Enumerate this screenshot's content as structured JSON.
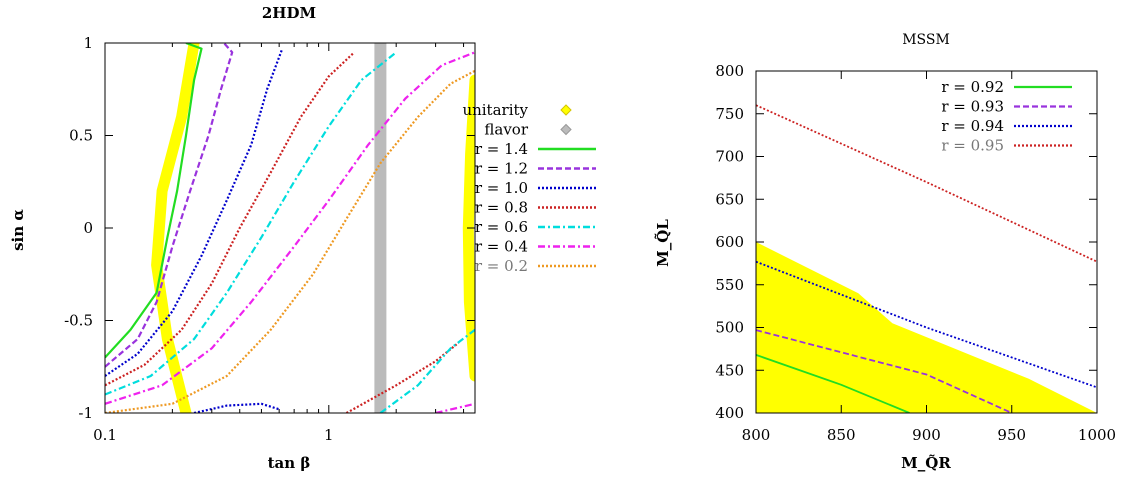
{
  "chart_data": [
    {
      "type": "line",
      "title": "2HDM",
      "xlabel": "tan β",
      "ylabel": "sin α",
      "xscale": "log",
      "xlim": [
        0.1,
        4.5
      ],
      "ylim": [
        -1,
        1
      ],
      "x_ticks": [
        "0.1",
        "1"
      ],
      "y_ticks": [
        "-1",
        "-0.5",
        "0",
        "0.5",
        "1"
      ],
      "legend_position": "right, outside",
      "legend": [
        {
          "label": "unitarity",
          "color": "#ffff00",
          "marker": "diamond"
        },
        {
          "label": "flavor",
          "color": "#bbbbbb",
          "marker": "diamond"
        },
        {
          "label": "r = 1.4",
          "color": "#22dd22",
          "style": "solid"
        },
        {
          "label": "r = 1.2",
          "color": "#9933dd",
          "style": "dashed"
        },
        {
          "label": "r = 1.0",
          "color": "#0000cc",
          "style": "dotted"
        },
        {
          "label": "r = 0.8",
          "color": "#cc2222",
          "style": "dotted"
        },
        {
          "label": "r = 0.6",
          "color": "#00dddd",
          "style": "dash-dot"
        },
        {
          "label": "r = 0.4",
          "color": "#ee22ee",
          "style": "dash-dot"
        },
        {
          "label": "r = 0.2",
          "color": "#ee9922",
          "style": "dotted",
          "text_color": "#777777"
        }
      ],
      "regions": [
        {
          "name": "unitarity",
          "color": "#ffff00",
          "bands": [
            [
              [
                0.25,
                1
              ],
              [
                0.22,
                0.6
              ],
              [
                0.18,
                0.2
              ],
              [
                0.17,
                -0.2
              ],
              [
                0.19,
                -0.6
              ],
              [
                0.23,
                -1
              ]
            ],
            [
              [
                4.5,
                0.8
              ],
              [
                4.3,
                0.4
              ],
              [
                4.2,
                0
              ],
              [
                4.25,
                -0.4
              ],
              [
                4.5,
                -0.8
              ]
            ]
          ]
        },
        {
          "name": "flavor",
          "color": "#bbbbbb",
          "x": 1.7
        }
      ],
      "series": [
        {
          "name": "r = 1.4",
          "color": "#22dd22",
          "curves": [
            [
              [
                0.1,
                -0.7
              ],
              [
                0.13,
                -0.55
              ],
              [
                0.17,
                -0.35
              ],
              [
                0.19,
                -0.05
              ],
              [
                0.21,
                0.2
              ],
              [
                0.23,
                0.5
              ],
              [
                0.25,
                0.8
              ],
              [
                0.27,
                0.97
              ],
              [
                0.23,
                1
              ]
            ]
          ]
        },
        {
          "name": "r = 1.2",
          "color": "#9933dd",
          "curves": [
            [
              [
                0.1,
                -0.75
              ],
              [
                0.14,
                -0.6
              ],
              [
                0.17,
                -0.4
              ],
              [
                0.2,
                -0.1
              ],
              [
                0.24,
                0.2
              ],
              [
                0.29,
                0.5
              ],
              [
                0.33,
                0.75
              ],
              [
                0.37,
                0.95
              ],
              [
                0.34,
                1
              ]
            ]
          ]
        },
        {
          "name": "r = 1.0",
          "color": "#0000cc",
          "curves": [
            [
              [
                0.1,
                -0.8
              ],
              [
                0.14,
                -0.68
              ],
              [
                0.2,
                -0.45
              ],
              [
                0.27,
                -0.15
              ],
              [
                0.35,
                0.15
              ],
              [
                0.45,
                0.45
              ],
              [
                0.53,
                0.75
              ],
              [
                0.62,
                0.97
              ]
            ],
            [
              [
                0.25,
                -1
              ],
              [
                0.35,
                -0.96
              ],
              [
                0.5,
                -0.95
              ],
              [
                0.6,
                -0.98
              ]
            ]
          ]
        },
        {
          "name": "r = 0.8",
          "color": "#cc2222",
          "curves": [
            [
              [
                0.1,
                -0.85
              ],
              [
                0.15,
                -0.74
              ],
              [
                0.22,
                -0.55
              ],
              [
                0.3,
                -0.3
              ],
              [
                0.4,
                0
              ],
              [
                0.55,
                0.3
              ],
              [
                0.75,
                0.6
              ],
              [
                1.0,
                0.82
              ],
              [
                1.3,
                0.95
              ]
            ],
            [
              [
                1.2,
                -1
              ],
              [
                2.0,
                -0.85
              ],
              [
                3.0,
                -0.72
              ],
              [
                3.8,
                -0.62
              ]
            ]
          ]
        },
        {
          "name": "r = 0.6",
          "color": "#00dddd",
          "curves": [
            [
              [
                0.1,
                -0.9
              ],
              [
                0.16,
                -0.8
              ],
              [
                0.25,
                -0.6
              ],
              [
                0.35,
                -0.35
              ],
              [
                0.5,
                -0.05
              ],
              [
                0.7,
                0.25
              ],
              [
                1.0,
                0.55
              ],
              [
                1.4,
                0.8
              ],
              [
                2.0,
                0.95
              ]
            ],
            [
              [
                1.7,
                -1
              ],
              [
                2.5,
                -0.85
              ],
              [
                3.5,
                -0.65
              ],
              [
                4.5,
                -0.55
              ]
            ]
          ]
        },
        {
          "name": "r = 0.4",
          "color": "#ee22ee",
          "curves": [
            [
              [
                0.1,
                -0.95
              ],
              [
                0.18,
                -0.85
              ],
              [
                0.3,
                -0.65
              ],
              [
                0.45,
                -0.4
              ],
              [
                0.7,
                -0.1
              ],
              [
                1.0,
                0.15
              ],
              [
                1.5,
                0.45
              ],
              [
                2.2,
                0.7
              ],
              [
                3.2,
                0.88
              ],
              [
                4.5,
                0.95
              ]
            ],
            [
              [
                3.0,
                -1
              ],
              [
                4.5,
                -0.95
              ]
            ]
          ]
        },
        {
          "name": "r = 0.2",
          "color": "#ee9922",
          "curves": [
            [
              [
                0.1,
                -1
              ],
              [
                0.2,
                -0.95
              ],
              [
                0.35,
                -0.8
              ],
              [
                0.55,
                -0.55
              ],
              [
                0.85,
                -0.25
              ],
              [
                1.2,
                0.05
              ],
              [
                1.7,
                0.35
              ],
              [
                2.5,
                0.6
              ],
              [
                3.5,
                0.78
              ],
              [
                4.5,
                0.85
              ]
            ]
          ]
        }
      ]
    },
    {
      "type": "line",
      "title": "MSSM",
      "xlabel": "M_Q̃R",
      "ylabel": "M_Q̃L",
      "xlim": [
        800,
        1000
      ],
      "ylim": [
        400,
        800
      ],
      "x_ticks": [
        "800",
        "850",
        "900",
        "950",
        "1000"
      ],
      "y_ticks": [
        "400",
        "450",
        "500",
        "550",
        "600",
        "650",
        "700",
        "750",
        "800"
      ],
      "legend_position": "top-right, inside",
      "regions": [
        {
          "name": "yellow-region",
          "color": "#ffff00",
          "polygon": [
            [
              800,
              600
            ],
            [
              860,
              540
            ],
            [
              880,
              505
            ],
            [
              960,
              440
            ],
            [
              1000,
              400
            ],
            [
              800,
              400
            ]
          ]
        }
      ],
      "series": [
        {
          "name": "r = 0.92",
          "color": "#22dd22",
          "style": "solid",
          "points": [
            [
              800,
              468
            ],
            [
              850,
              433
            ],
            [
              890,
              400
            ]
          ]
        },
        {
          "name": "r = 0.93",
          "color": "#9933dd",
          "style": "dashed",
          "points": [
            [
              800,
              497
            ],
            [
              900,
              445
            ],
            [
              950,
              400
            ]
          ]
        },
        {
          "name": "r = 0.94",
          "color": "#0000cc",
          "style": "dotted",
          "points": [
            [
              800,
              577
            ],
            [
              900,
              500
            ],
            [
              1000,
              430
            ]
          ]
        },
        {
          "name": "r = 0.95",
          "color": "#cc2222",
          "style": "dotted",
          "text_color": "#777777",
          "points": [
            [
              800,
              760
            ],
            [
              900,
              670
            ],
            [
              1000,
              577
            ]
          ]
        }
      ]
    }
  ]
}
